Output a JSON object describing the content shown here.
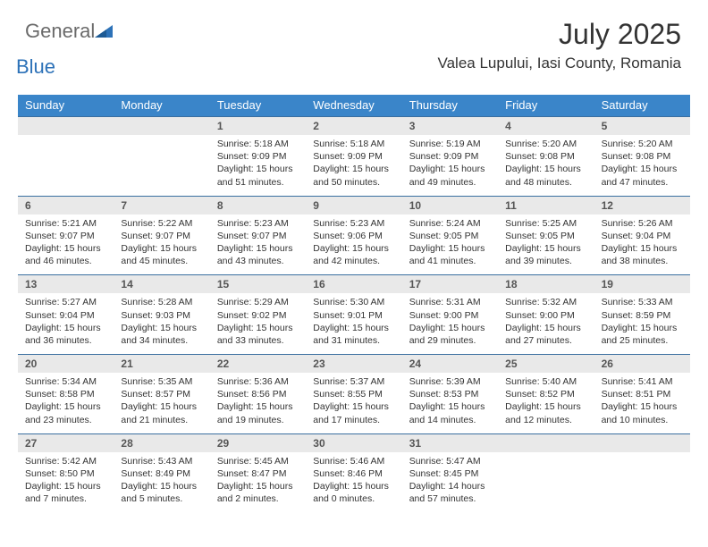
{
  "brand": {
    "general": "General",
    "blue": "Blue"
  },
  "header": {
    "title": "July 2025",
    "location": "Valea Lupului, Iasi County, Romania"
  },
  "colors": {
    "header_bg": "#3a85c9",
    "header_text": "#ffffff",
    "num_bg": "#e9e9e9",
    "border": "#3a6fa0",
    "brand_gray": "#6a6a6a",
    "brand_blue": "#2d72b8"
  },
  "daynames": [
    "Sunday",
    "Monday",
    "Tuesday",
    "Wednesday",
    "Thursday",
    "Friday",
    "Saturday"
  ],
  "weeks": [
    [
      {
        "n": "",
        "empty": true
      },
      {
        "n": "",
        "empty": true
      },
      {
        "n": "1",
        "sr": "Sunrise: 5:18 AM",
        "ss": "Sunset: 9:09 PM",
        "d1": "Daylight: 15 hours",
        "d2": "and 51 minutes."
      },
      {
        "n": "2",
        "sr": "Sunrise: 5:18 AM",
        "ss": "Sunset: 9:09 PM",
        "d1": "Daylight: 15 hours",
        "d2": "and 50 minutes."
      },
      {
        "n": "3",
        "sr": "Sunrise: 5:19 AM",
        "ss": "Sunset: 9:09 PM",
        "d1": "Daylight: 15 hours",
        "d2": "and 49 minutes."
      },
      {
        "n": "4",
        "sr": "Sunrise: 5:20 AM",
        "ss": "Sunset: 9:08 PM",
        "d1": "Daylight: 15 hours",
        "d2": "and 48 minutes."
      },
      {
        "n": "5",
        "sr": "Sunrise: 5:20 AM",
        "ss": "Sunset: 9:08 PM",
        "d1": "Daylight: 15 hours",
        "d2": "and 47 minutes."
      }
    ],
    [
      {
        "n": "6",
        "sr": "Sunrise: 5:21 AM",
        "ss": "Sunset: 9:07 PM",
        "d1": "Daylight: 15 hours",
        "d2": "and 46 minutes."
      },
      {
        "n": "7",
        "sr": "Sunrise: 5:22 AM",
        "ss": "Sunset: 9:07 PM",
        "d1": "Daylight: 15 hours",
        "d2": "and 45 minutes."
      },
      {
        "n": "8",
        "sr": "Sunrise: 5:23 AM",
        "ss": "Sunset: 9:07 PM",
        "d1": "Daylight: 15 hours",
        "d2": "and 43 minutes."
      },
      {
        "n": "9",
        "sr": "Sunrise: 5:23 AM",
        "ss": "Sunset: 9:06 PM",
        "d1": "Daylight: 15 hours",
        "d2": "and 42 minutes."
      },
      {
        "n": "10",
        "sr": "Sunrise: 5:24 AM",
        "ss": "Sunset: 9:05 PM",
        "d1": "Daylight: 15 hours",
        "d2": "and 41 minutes."
      },
      {
        "n": "11",
        "sr": "Sunrise: 5:25 AM",
        "ss": "Sunset: 9:05 PM",
        "d1": "Daylight: 15 hours",
        "d2": "and 39 minutes."
      },
      {
        "n": "12",
        "sr": "Sunrise: 5:26 AM",
        "ss": "Sunset: 9:04 PM",
        "d1": "Daylight: 15 hours",
        "d2": "and 38 minutes."
      }
    ],
    [
      {
        "n": "13",
        "sr": "Sunrise: 5:27 AM",
        "ss": "Sunset: 9:04 PM",
        "d1": "Daylight: 15 hours",
        "d2": "and 36 minutes."
      },
      {
        "n": "14",
        "sr": "Sunrise: 5:28 AM",
        "ss": "Sunset: 9:03 PM",
        "d1": "Daylight: 15 hours",
        "d2": "and 34 minutes."
      },
      {
        "n": "15",
        "sr": "Sunrise: 5:29 AM",
        "ss": "Sunset: 9:02 PM",
        "d1": "Daylight: 15 hours",
        "d2": "and 33 minutes."
      },
      {
        "n": "16",
        "sr": "Sunrise: 5:30 AM",
        "ss": "Sunset: 9:01 PM",
        "d1": "Daylight: 15 hours",
        "d2": "and 31 minutes."
      },
      {
        "n": "17",
        "sr": "Sunrise: 5:31 AM",
        "ss": "Sunset: 9:00 PM",
        "d1": "Daylight: 15 hours",
        "d2": "and 29 minutes."
      },
      {
        "n": "18",
        "sr": "Sunrise: 5:32 AM",
        "ss": "Sunset: 9:00 PM",
        "d1": "Daylight: 15 hours",
        "d2": "and 27 minutes."
      },
      {
        "n": "19",
        "sr": "Sunrise: 5:33 AM",
        "ss": "Sunset: 8:59 PM",
        "d1": "Daylight: 15 hours",
        "d2": "and 25 minutes."
      }
    ],
    [
      {
        "n": "20",
        "sr": "Sunrise: 5:34 AM",
        "ss": "Sunset: 8:58 PM",
        "d1": "Daylight: 15 hours",
        "d2": "and 23 minutes."
      },
      {
        "n": "21",
        "sr": "Sunrise: 5:35 AM",
        "ss": "Sunset: 8:57 PM",
        "d1": "Daylight: 15 hours",
        "d2": "and 21 minutes."
      },
      {
        "n": "22",
        "sr": "Sunrise: 5:36 AM",
        "ss": "Sunset: 8:56 PM",
        "d1": "Daylight: 15 hours",
        "d2": "and 19 minutes."
      },
      {
        "n": "23",
        "sr": "Sunrise: 5:37 AM",
        "ss": "Sunset: 8:55 PM",
        "d1": "Daylight: 15 hours",
        "d2": "and 17 minutes."
      },
      {
        "n": "24",
        "sr": "Sunrise: 5:39 AM",
        "ss": "Sunset: 8:53 PM",
        "d1": "Daylight: 15 hours",
        "d2": "and 14 minutes."
      },
      {
        "n": "25",
        "sr": "Sunrise: 5:40 AM",
        "ss": "Sunset: 8:52 PM",
        "d1": "Daylight: 15 hours",
        "d2": "and 12 minutes."
      },
      {
        "n": "26",
        "sr": "Sunrise: 5:41 AM",
        "ss": "Sunset: 8:51 PM",
        "d1": "Daylight: 15 hours",
        "d2": "and 10 minutes."
      }
    ],
    [
      {
        "n": "27",
        "sr": "Sunrise: 5:42 AM",
        "ss": "Sunset: 8:50 PM",
        "d1": "Daylight: 15 hours",
        "d2": "and 7 minutes."
      },
      {
        "n": "28",
        "sr": "Sunrise: 5:43 AM",
        "ss": "Sunset: 8:49 PM",
        "d1": "Daylight: 15 hours",
        "d2": "and 5 minutes."
      },
      {
        "n": "29",
        "sr": "Sunrise: 5:45 AM",
        "ss": "Sunset: 8:47 PM",
        "d1": "Daylight: 15 hours",
        "d2": "and 2 minutes."
      },
      {
        "n": "30",
        "sr": "Sunrise: 5:46 AM",
        "ss": "Sunset: 8:46 PM",
        "d1": "Daylight: 15 hours",
        "d2": "and 0 minutes."
      },
      {
        "n": "31",
        "sr": "Sunrise: 5:47 AM",
        "ss": "Sunset: 8:45 PM",
        "d1": "Daylight: 14 hours",
        "d2": "and 57 minutes."
      },
      {
        "n": "",
        "empty": true
      },
      {
        "n": "",
        "empty": true
      }
    ]
  ]
}
